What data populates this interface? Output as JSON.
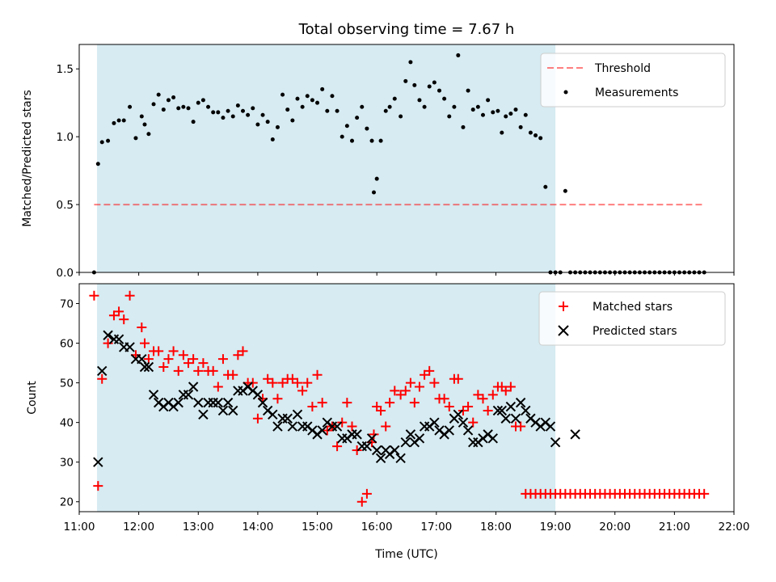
{
  "title": "Total observing time = 7.67 h",
  "colors": {
    "shade": "#add8e6",
    "threshold": "#ff0000",
    "measurement": "#000000",
    "matched": "#ff0000",
    "predicted": "#000000"
  },
  "chart_data": [
    {
      "type": "scatter",
      "ylabel": "Matched/Predicted stars",
      "xlim": [
        "11:00",
        "22:00"
      ],
      "ylim": [
        0,
        1.68
      ],
      "yticks": [
        "0.0",
        "0.5",
        "1.0",
        "1.5"
      ],
      "shaded_span": [
        "11:18",
        "19:00"
      ],
      "legend_position": "top-right",
      "threshold": {
        "name": "Threshold",
        "value": 0.5,
        "x_range": [
          "11:15",
          "21:30"
        ],
        "style": "dashed"
      },
      "series": [
        {
          "name": "Measurements",
          "x": [
            "11:15",
            "11:19",
            "11:23",
            "11:29",
            "11:35",
            "11:40",
            "11:45",
            "11:51",
            "11:57",
            "12:03",
            "12:06",
            "12:10",
            "12:15",
            "12:20",
            "12:25",
            "12:30",
            "12:35",
            "12:40",
            "12:45",
            "12:50",
            "12:55",
            "13:00",
            "13:05",
            "13:10",
            "13:15",
            "13:20",
            "13:25",
            "13:30",
            "13:35",
            "13:40",
            "13:45",
            "13:50",
            "13:55",
            "14:00",
            "14:05",
            "14:10",
            "14:15",
            "14:20",
            "14:25",
            "14:30",
            "14:35",
            "14:40",
            "14:45",
            "14:50",
            "14:55",
            "15:00",
            "15:05",
            "15:10",
            "15:15",
            "15:20",
            "15:25",
            "15:30",
            "15:35",
            "15:40",
            "15:45",
            "15:50",
            "15:55",
            "15:57",
            "16:00",
            "16:04",
            "16:09",
            "16:13",
            "16:18",
            "16:24",
            "16:29",
            "16:34",
            "16:38",
            "16:43",
            "16:48",
            "16:53",
            "16:58",
            "17:03",
            "17:08",
            "17:13",
            "17:18",
            "17:22",
            "17:27",
            "17:32",
            "17:37",
            "17:42",
            "17:47",
            "17:52",
            "17:57",
            "18:02",
            "18:06",
            "18:10",
            "18:15",
            "18:20",
            "18:25",
            "18:30",
            "18:35",
            "18:40",
            "18:45",
            "18:50",
            "18:55",
            "19:00",
            "19:05",
            "19:10",
            "19:15",
            "19:20",
            "19:25",
            "19:30",
            "19:35",
            "19:40",
            "19:45",
            "19:50",
            "19:55",
            "20:00",
            "20:05",
            "20:10",
            "20:15",
            "20:20",
            "20:25",
            "20:30",
            "20:35",
            "20:40",
            "20:45",
            "20:50",
            "20:55",
            "21:00",
            "21:05",
            "21:10",
            "21:15",
            "21:20",
            "21:25",
            "21:30"
          ],
          "y": [
            0,
            0.8,
            0.96,
            0.97,
            1.1,
            1.12,
            1.12,
            1.22,
            0.99,
            1.15,
            1.09,
            1.02,
            1.24,
            1.31,
            1.2,
            1.27,
            1.29,
            1.21,
            1.22,
            1.21,
            1.11,
            1.25,
            1.27,
            1.22,
            1.18,
            1.18,
            1.14,
            1.19,
            1.15,
            1.23,
            1.19,
            1.16,
            1.21,
            1.09,
            1.16,
            1.11,
            0.98,
            1.07,
            1.31,
            1.2,
            1.12,
            1.28,
            1.22,
            1.3,
            1.27,
            1.25,
            1.35,
            1.19,
            1.3,
            1.19,
            1.0,
            1.08,
            0.97,
            1.14,
            1.22,
            1.06,
            0.97,
            0.59,
            0.69,
            0.97,
            1.19,
            1.22,
            1.28,
            1.15,
            1.41,
            1.55,
            1.38,
            1.27,
            1.22,
            1.37,
            1.4,
            1.34,
            1.28,
            1.15,
            1.22,
            1.6,
            1.07,
            1.34,
            1.2,
            1.22,
            1.16,
            1.27,
            1.18,
            1.19,
            1.03,
            1.15,
            1.17,
            1.2,
            1.07,
            1.16,
            1.03,
            1.01,
            0.99,
            0.63,
            0,
            0,
            0,
            0.6,
            0,
            0,
            0,
            0,
            0,
            0,
            0,
            0,
            0,
            0,
            0,
            0,
            0,
            0,
            0,
            0,
            0,
            0,
            0,
            0,
            0,
            0,
            0,
            0,
            0,
            0,
            0,
            0
          ]
        }
      ]
    },
    {
      "type": "scatter",
      "xlabel": "Time (UTC)",
      "ylabel": "Count",
      "xlim": [
        "11:00",
        "22:00"
      ],
      "ylim": [
        17.5,
        75
      ],
      "yticks": [
        "20",
        "30",
        "40",
        "50",
        "60",
        "70"
      ],
      "xticks": [
        "11:00",
        "12:00",
        "13:00",
        "14:00",
        "15:00",
        "16:00",
        "17:00",
        "18:00",
        "19:00",
        "20:00",
        "21:00",
        "22:00"
      ],
      "shaded_span": [
        "11:18",
        "19:00"
      ],
      "legend_position": "top-right",
      "series": [
        {
          "name": "Matched stars",
          "marker": "+",
          "x": [
            "11:15",
            "11:19",
            "11:23",
            "11:29",
            "11:35",
            "11:40",
            "11:45",
            "11:51",
            "11:57",
            "12:03",
            "12:06",
            "12:10",
            "12:15",
            "12:20",
            "12:25",
            "12:30",
            "12:35",
            "12:40",
            "12:45",
            "12:50",
            "12:55",
            "13:00",
            "13:05",
            "13:10",
            "13:15",
            "13:20",
            "13:25",
            "13:30",
            "13:35",
            "13:40",
            "13:45",
            "13:50",
            "13:55",
            "14:00",
            "14:05",
            "14:10",
            "14:15",
            "14:20",
            "14:25",
            "14:30",
            "14:35",
            "14:40",
            "14:45",
            "14:50",
            "14:55",
            "15:00",
            "15:05",
            "15:10",
            "15:15",
            "15:20",
            "15:25",
            "15:30",
            "15:35",
            "15:40",
            "15:45",
            "15:50",
            "15:55",
            "15:57",
            "16:00",
            "16:04",
            "16:09",
            "16:13",
            "16:18",
            "16:24",
            "16:29",
            "16:34",
            "16:38",
            "16:43",
            "16:48",
            "16:53",
            "16:58",
            "17:03",
            "17:08",
            "17:13",
            "17:18",
            "17:22",
            "17:27",
            "17:32",
            "17:37",
            "17:42",
            "17:47",
            "17:52",
            "17:57",
            "18:02",
            "18:06",
            "18:10",
            "18:15",
            "18:20",
            "18:25",
            "18:30",
            "18:35",
            "18:40",
            "18:45",
            "18:50",
            "18:55",
            "19:00",
            "19:05",
            "19:10",
            "19:15",
            "19:20",
            "19:25",
            "19:30",
            "19:35",
            "19:40",
            "19:45",
            "19:50",
            "19:55",
            "20:00",
            "20:05",
            "20:10",
            "20:15",
            "20:20",
            "20:25",
            "20:30",
            "20:35",
            "20:40",
            "20:45",
            "20:50",
            "20:55",
            "21:00",
            "21:05",
            "21:10",
            "21:15",
            "21:20",
            "21:25",
            "21:30"
          ],
          "y": [
            72,
            24,
            51,
            60,
            67,
            68,
            66,
            72,
            57,
            64,
            60,
            56,
            58,
            58,
            54,
            56,
            58,
            53,
            57,
            55,
            56,
            53,
            55,
            53,
            53,
            49,
            56,
            52,
            52,
            57,
            58,
            50,
            50,
            41,
            46,
            51,
            50,
            46,
            50,
            51,
            51,
            50,
            48,
            50,
            44,
            52,
            45,
            38,
            39,
            34,
            40,
            45,
            39,
            33,
            20,
            22,
            35,
            37,
            44,
            43,
            39,
            45,
            48,
            47,
            48,
            50,
            45,
            49,
            52,
            53,
            50,
            46,
            46,
            44,
            51,
            51,
            43,
            44,
            40,
            47,
            46,
            43,
            47,
            49,
            49,
            48,
            49,
            39,
            39,
            22,
            22,
            22,
            22,
            22,
            22,
            22,
            22,
            22,
            22,
            22,
            22,
            22,
            22,
            22,
            22,
            22,
            22,
            22,
            22,
            22,
            22,
            22,
            22,
            22,
            22,
            22,
            22,
            22,
            22,
            22,
            22,
            22,
            22,
            22,
            22,
            22
          ]
        },
        {
          "name": "Predicted stars",
          "marker": "x",
          "x": [
            "11:19",
            "11:23",
            "11:29",
            "11:35",
            "11:40",
            "11:45",
            "11:51",
            "11:57",
            "12:03",
            "12:06",
            "12:10",
            "12:15",
            "12:20",
            "12:25",
            "12:30",
            "12:35",
            "12:40",
            "12:45",
            "12:50",
            "12:55",
            "13:00",
            "13:05",
            "13:10",
            "13:15",
            "13:20",
            "13:25",
            "13:30",
            "13:35",
            "13:40",
            "13:45",
            "13:50",
            "13:55",
            "14:00",
            "14:05",
            "14:10",
            "14:15",
            "14:20",
            "14:25",
            "14:30",
            "14:35",
            "14:40",
            "14:45",
            "14:50",
            "14:55",
            "15:00",
            "15:05",
            "15:10",
            "15:15",
            "15:20",
            "15:25",
            "15:30",
            "15:35",
            "15:40",
            "15:45",
            "15:50",
            "15:55",
            "16:00",
            "16:04",
            "16:09",
            "16:13",
            "16:18",
            "16:24",
            "16:29",
            "16:34",
            "16:38",
            "16:43",
            "16:48",
            "16:53",
            "16:58",
            "17:03",
            "17:08",
            "17:13",
            "17:18",
            "17:22",
            "17:27",
            "17:32",
            "17:37",
            "17:42",
            "17:47",
            "17:52",
            "17:57",
            "18:02",
            "18:06",
            "18:10",
            "18:15",
            "18:20",
            "18:25",
            "18:30",
            "18:35",
            "18:40",
            "18:45",
            "18:50",
            "18:55",
            "19:00",
            "19:20"
          ],
          "y": [
            30,
            53,
            62,
            61,
            61,
            59,
            59,
            56,
            56,
            54,
            54,
            47,
            45,
            44,
            45,
            44,
            45,
            47,
            47,
            49,
            45,
            42,
            45,
            45,
            45,
            43,
            45,
            43,
            48,
            48,
            49,
            48,
            47,
            45,
            43,
            42,
            39,
            41,
            41,
            39,
            42,
            39,
            39,
            38,
            37,
            38,
            40,
            39,
            39,
            36,
            36,
            37,
            37,
            34,
            34,
            36,
            33,
            31,
            33,
            32,
            33,
            31,
            35,
            37,
            35,
            36,
            39,
            39,
            40,
            38,
            37,
            38,
            41,
            42,
            40,
            38,
            35,
            35,
            36,
            37,
            36,
            43,
            43,
            41,
            44,
            41,
            45,
            43,
            41,
            40,
            39,
            40,
            39,
            35,
            37
          ]
        }
      ]
    }
  ]
}
